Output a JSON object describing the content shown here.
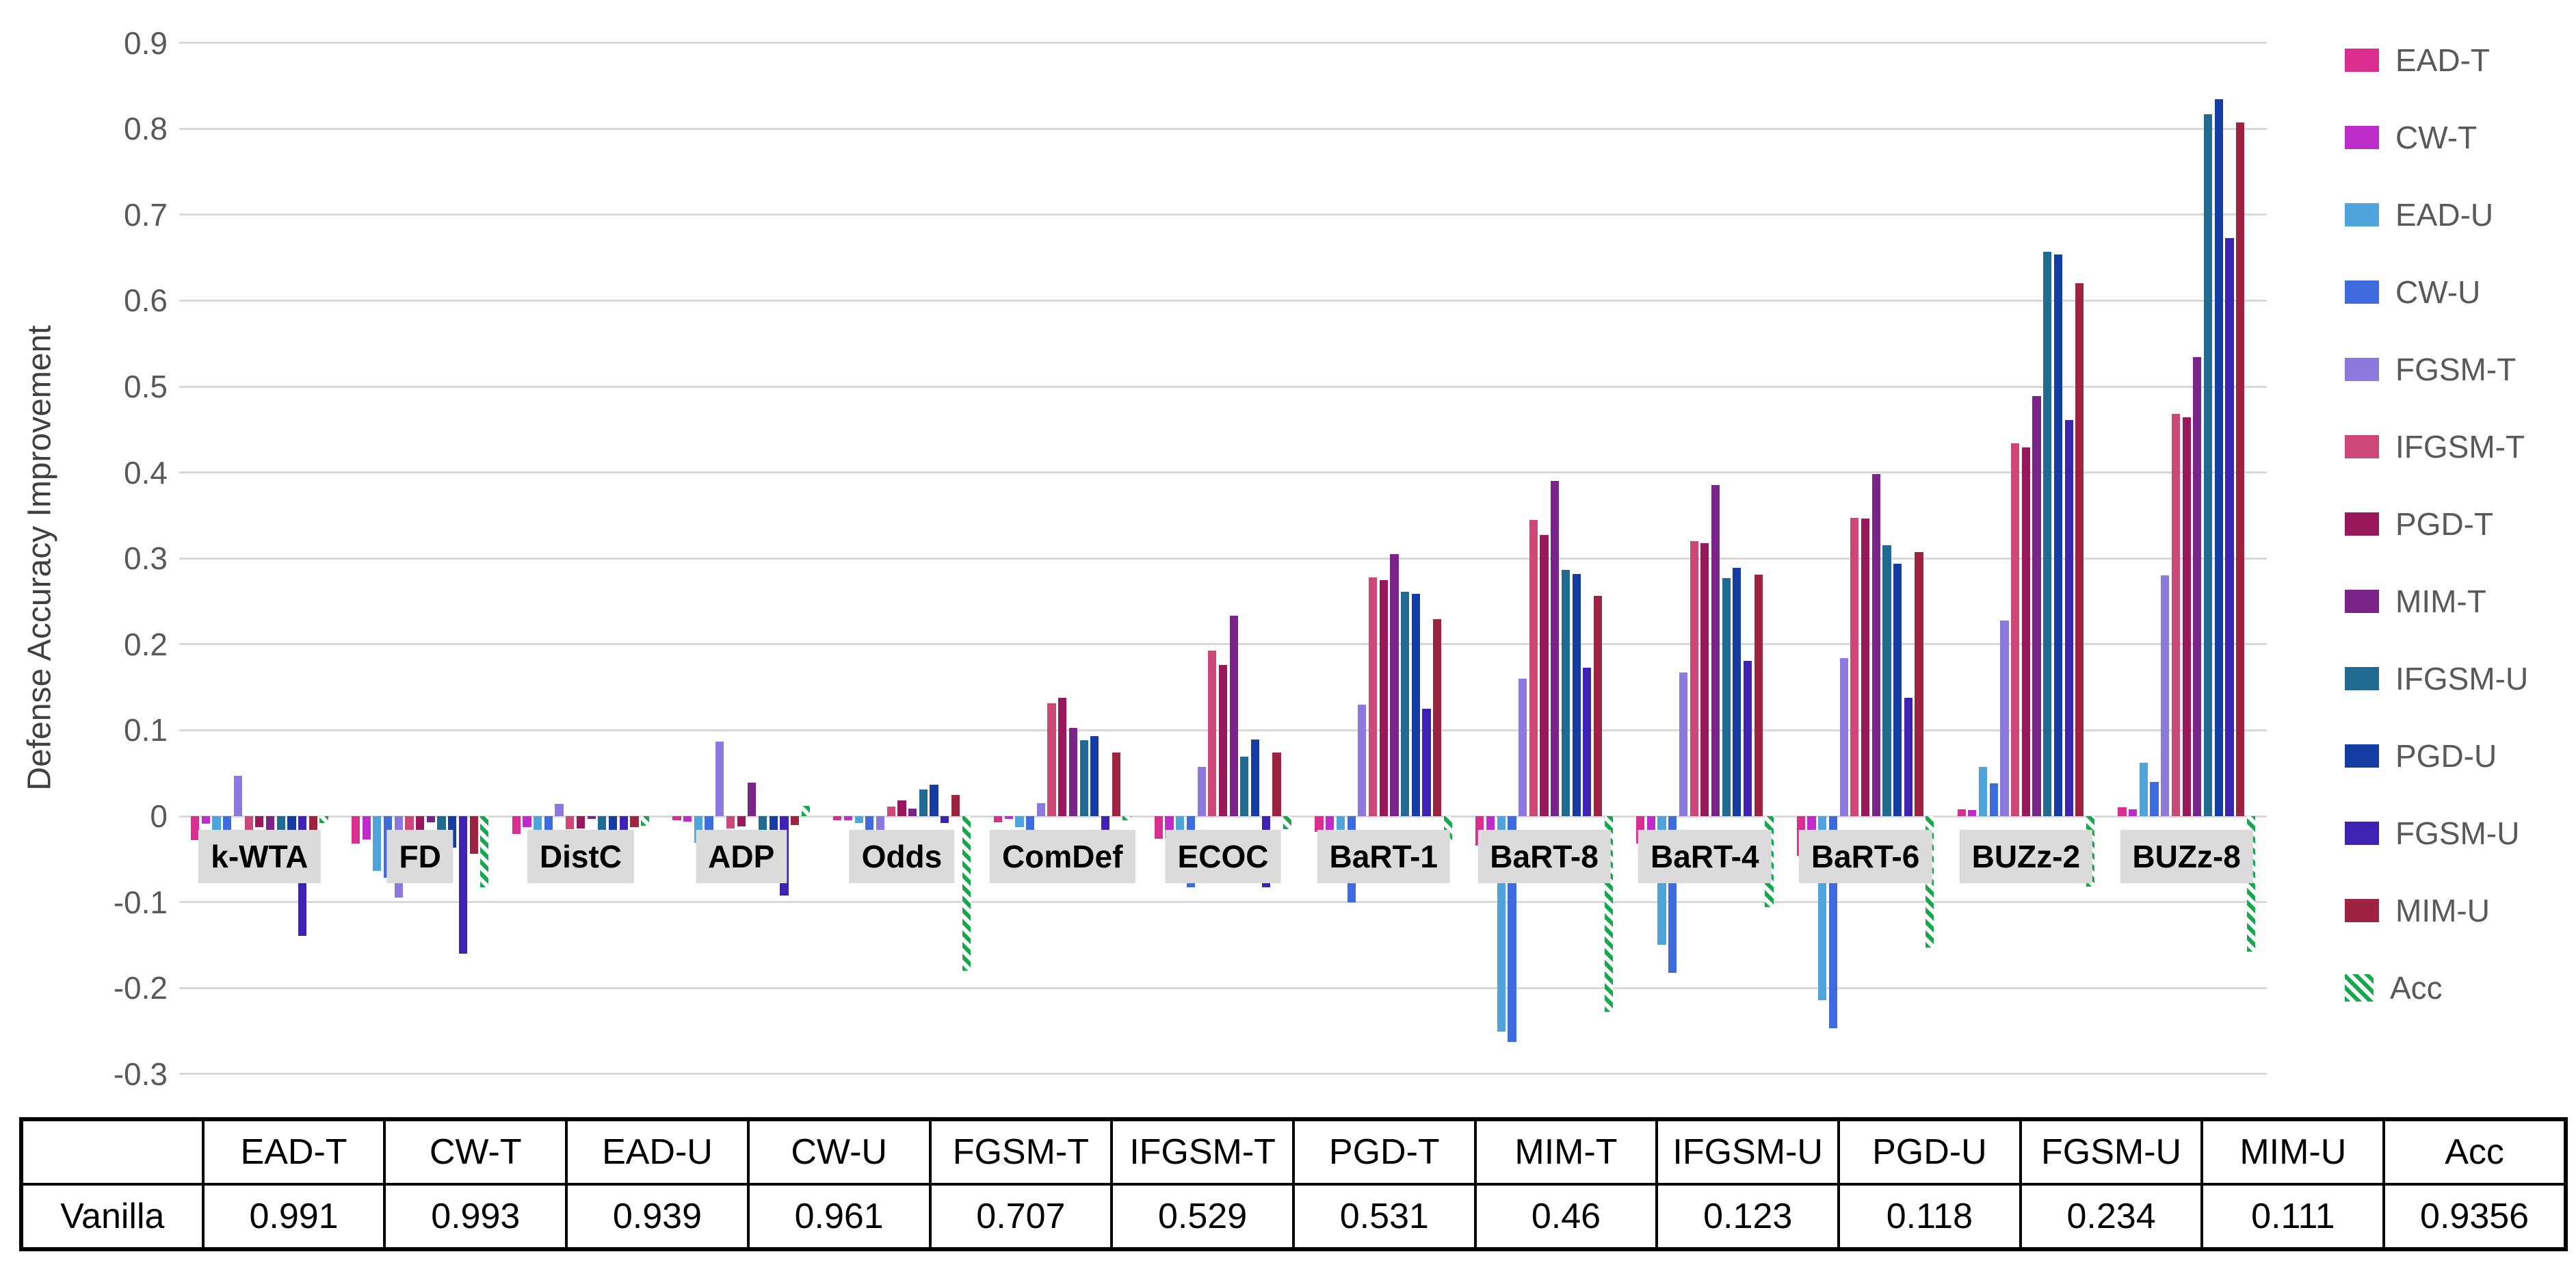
{
  "chart_data": {
    "type": "bar",
    "title": "",
    "xlabel": "",
    "ylabel": "Defense Accuracy Improvement",
    "ylim": [
      -0.3,
      0.9
    ],
    "grid": true,
    "legend_position": "right",
    "y_tick_labels": [
      "0.9",
      "0.8",
      "0.7",
      "0.6",
      "0.5",
      "0.4",
      "0.3",
      "0.2",
      "0.1",
      "0",
      "-0.1",
      "-0.2",
      "-0.3"
    ],
    "categories": [
      "k-WTA",
      "FD",
      "DistC",
      "ADP",
      "Odds",
      "ComDef",
      "ECOC",
      "BaRT-1",
      "BaRT-8",
      "BaRT-4",
      "BaRT-6",
      "BUZz-2",
      "BUZz-8"
    ],
    "series": [
      {
        "name": "EAD-T",
        "color": "#D92D8F",
        "striped": false,
        "values": [
          -0.028,
          -0.032,
          -0.021,
          -0.005,
          -0.005,
          -0.007,
          -0.026,
          -0.018,
          -0.034,
          -0.032,
          -0.046,
          0.008,
          0.01
        ]
      },
      {
        "name": "CW-T",
        "color": "#BE2DC9",
        "striped": false,
        "values": [
          -0.009,
          -0.027,
          -0.013,
          -0.006,
          -0.005,
          -0.003,
          -0.026,
          -0.02,
          -0.019,
          -0.018,
          -0.019,
          0.007,
          0.008
        ]
      },
      {
        "name": "EAD-U",
        "color": "#4FA5DB",
        "striped": false,
        "values": [
          -0.017,
          -0.064,
          -0.027,
          -0.031,
          -0.008,
          -0.013,
          -0.075,
          -0.02,
          -0.251,
          -0.15,
          -0.214,
          0.057,
          0.062
        ]
      },
      {
        "name": "CW-U",
        "color": "#3E6CDF",
        "striped": false,
        "values": [
          -0.017,
          -0.072,
          -0.019,
          -0.027,
          -0.018,
          -0.019,
          -0.083,
          -0.1,
          -0.263,
          -0.182,
          -0.247,
          0.038,
          0.04
        ]
      },
      {
        "name": "FGSM-T",
        "color": "#8B79DE",
        "striped": false,
        "values": [
          0.047,
          -0.095,
          0.014,
          0.087,
          -0.019,
          0.015,
          0.057,
          0.13,
          0.16,
          0.167,
          0.184,
          0.228,
          0.28
        ]
      },
      {
        "name": "IFGSM-T",
        "color": "#CE4877",
        "striped": false,
        "values": [
          -0.018,
          -0.018,
          -0.015,
          -0.014,
          0.011,
          0.131,
          0.193,
          0.278,
          0.345,
          0.32,
          0.347,
          0.434,
          0.468
        ]
      },
      {
        "name": "PGD-T",
        "color": "#99175B",
        "striped": false,
        "values": [
          -0.013,
          -0.018,
          -0.014,
          -0.012,
          0.018,
          0.138,
          0.176,
          0.275,
          0.327,
          0.318,
          0.346,
          0.429,
          0.464
        ]
      },
      {
        "name": "MIM-T",
        "color": "#7A2489",
        "striped": false,
        "values": [
          -0.018,
          -0.007,
          -0.003,
          0.039,
          0.009,
          0.103,
          0.233,
          0.305,
          0.39,
          0.385,
          0.398,
          0.489,
          0.534
        ]
      },
      {
        "name": "IFGSM-U",
        "color": "#216A91",
        "striped": false,
        "values": [
          -0.018,
          -0.039,
          -0.019,
          -0.02,
          0.031,
          0.088,
          0.069,
          0.261,
          0.287,
          0.277,
          0.315,
          0.657,
          0.817
        ]
      },
      {
        "name": "PGD-U",
        "color": "#153CA2",
        "striped": false,
        "values": [
          -0.018,
          -0.037,
          -0.02,
          -0.025,
          0.037,
          0.093,
          0.089,
          0.259,
          0.282,
          0.289,
          0.294,
          0.654,
          0.834
        ]
      },
      {
        "name": "FGSM-U",
        "color": "#3E23B3",
        "striped": false,
        "values": [
          -0.139,
          -0.16,
          -0.049,
          -0.092,
          -0.008,
          -0.019,
          -0.083,
          0.125,
          0.173,
          0.181,
          0.138,
          0.461,
          0.673
        ]
      },
      {
        "name": "MIM-U",
        "color": "#9E2342",
        "striped": false,
        "values": [
          -0.048,
          -0.044,
          -0.013,
          -0.01,
          0.025,
          0.074,
          0.074,
          0.229,
          0.256,
          0.281,
          0.307,
          0.62,
          0.807
        ]
      },
      {
        "name": "Acc",
        "color": "#15A94B",
        "striped": true,
        "values": [
          -0.008,
          -0.083,
          -0.011,
          0.012,
          -0.18,
          -0.005,
          -0.015,
          -0.032,
          -0.228,
          -0.106,
          -0.153,
          -0.082,
          -0.158
        ]
      }
    ]
  },
  "table": {
    "headers": [
      "",
      "EAD-T",
      "CW-T",
      "EAD-U",
      "CW-U",
      "FGSM-T",
      "IFGSM-T",
      "PGD-T",
      "MIM-T",
      "IFGSM-U",
      "PGD-U",
      "FGSM-U",
      "MIM-U",
      "Acc"
    ],
    "rows": [
      {
        "label": "Vanilla",
        "values": [
          "0.991",
          "0.993",
          "0.939",
          "0.961",
          "0.707",
          "0.529",
          "0.531",
          "0.46",
          "0.123",
          "0.118",
          "0.234",
          "0.111",
          "0.9356"
        ]
      }
    ]
  },
  "colors": {
    "gridline": "#D9D9D9",
    "tick_text": "#595959",
    "category_label_bg": "#DBDBDB",
    "acc_stripe_green": "#15A94B"
  }
}
